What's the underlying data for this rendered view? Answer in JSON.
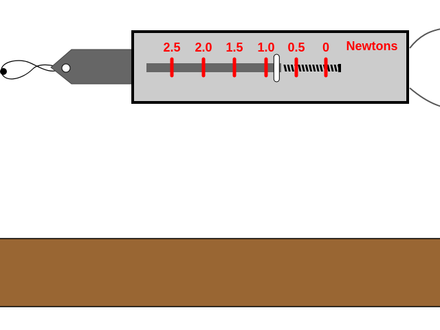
{
  "scale": {
    "unit_label": "Newtons",
    "tick_labels": [
      "2.5",
      "2.0",
      "1.5",
      "1.0",
      "0.5",
      "0"
    ],
    "reading_newtons": 0.8
  },
  "colors": {
    "label_red": "#ff0000",
    "tick_red": "#ff0000",
    "housing_fill": "#cccccc",
    "housing_stroke": "#000000",
    "rod_gray": "#666666",
    "hook_plate": "#666666",
    "table_brown": "#996633",
    "background": "#ffffff"
  }
}
